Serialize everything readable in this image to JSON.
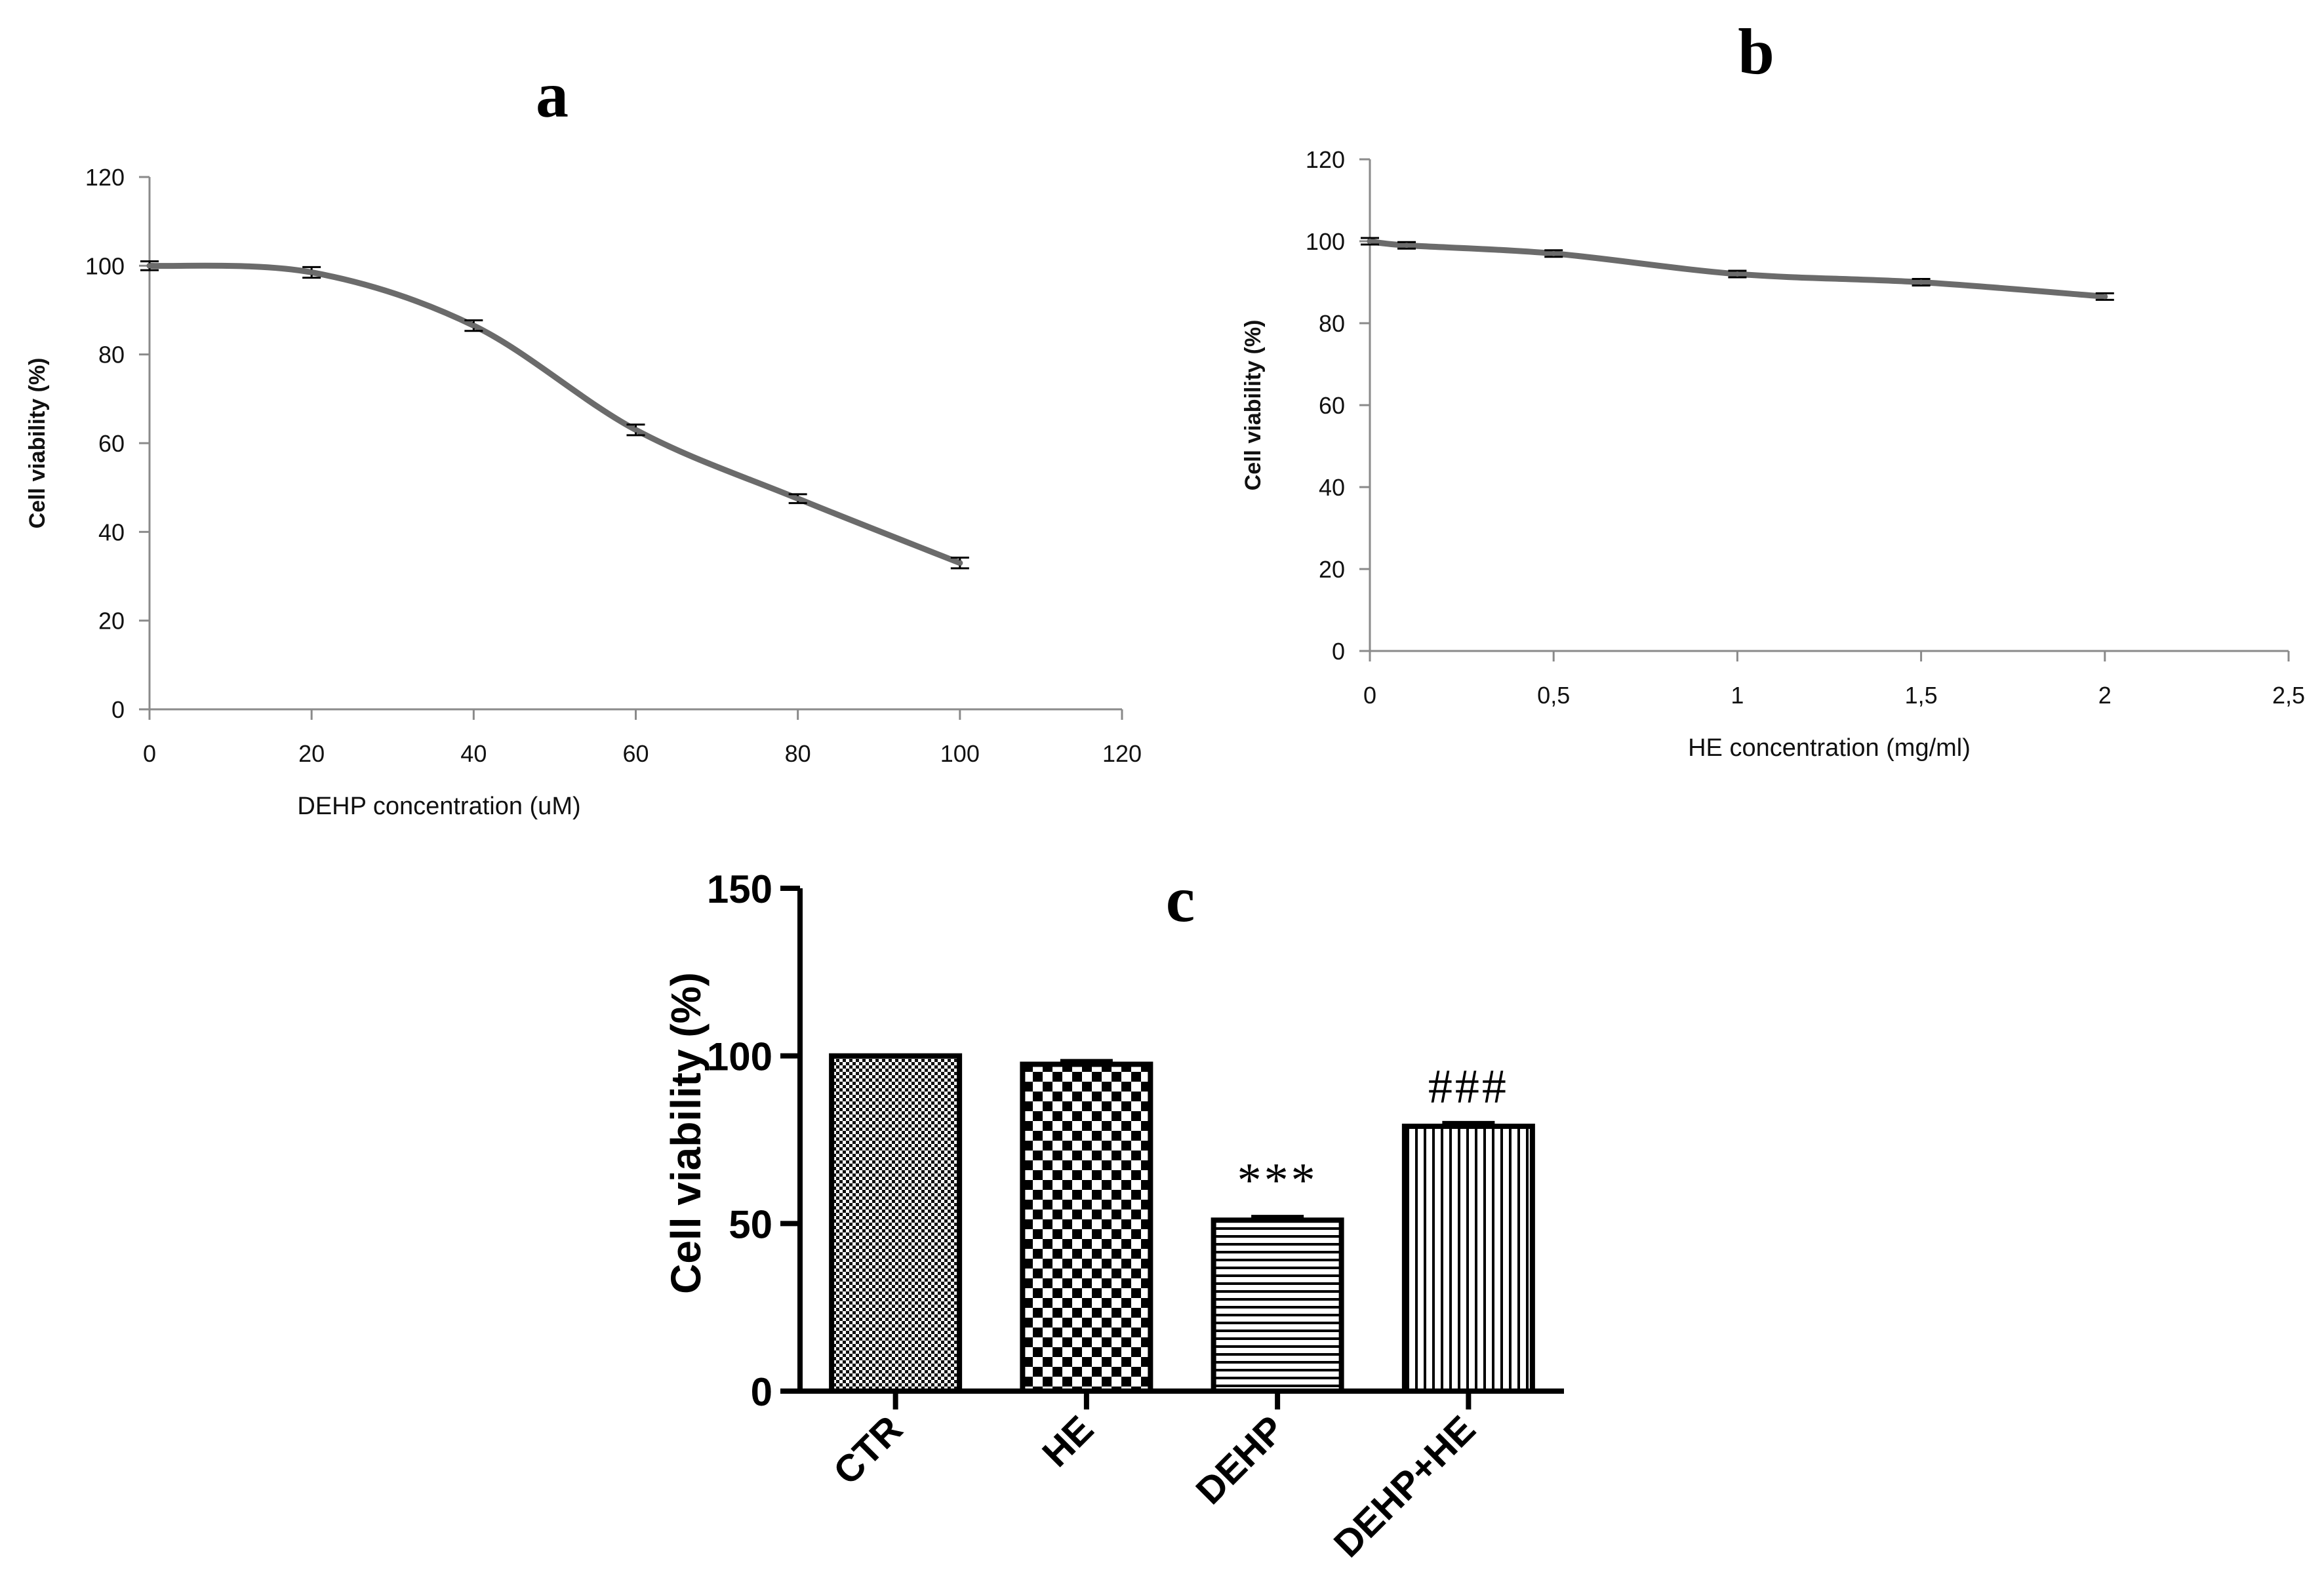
{
  "chart_data": [
    {
      "panel": "a",
      "type": "line",
      "title": "",
      "xlabel": "DEHP concentration (uM)",
      "ylabel": "Cell viability (%)",
      "xlim": [
        0,
        120
      ],
      "ylim": [
        0,
        120
      ],
      "xticks": [
        "0",
        "20",
        "40",
        "60",
        "80",
        "100",
        "120"
      ],
      "yticks": [
        "0",
        "20",
        "40",
        "60",
        "80",
        "100",
        "120"
      ],
      "x": [
        0,
        20,
        40,
        60,
        80,
        100
      ],
      "y": [
        100,
        98.5,
        86.5,
        63,
        47.5,
        33
      ],
      "err": [
        1,
        1.2,
        1.2,
        1.2,
        1,
        1.2
      ],
      "grid": false,
      "line_color": "#6b6b6b"
    },
    {
      "panel": "b",
      "type": "line",
      "title": "",
      "xlabel": "HE concentration (mg/ml)",
      "ylabel": "Cell viability (%)",
      "xlim": [
        0,
        2.5
      ],
      "ylim": [
        0,
        120
      ],
      "xticks": [
        "0",
        "0,5",
        "1",
        "1,5",
        "2",
        "2,5"
      ],
      "yticks": [
        "0",
        "20",
        "40",
        "60",
        "80",
        "100",
        "120"
      ],
      "x": [
        0,
        0.1,
        0.5,
        1,
        1.5,
        2
      ],
      "y": [
        100,
        99,
        97,
        92,
        90,
        86.5
      ],
      "err": [
        0.8,
        0.8,
        0.8,
        0.8,
        0.8,
        0.8
      ],
      "grid": false,
      "line_color": "#6b6b6b"
    },
    {
      "panel": "c",
      "type": "bar",
      "title": "",
      "xlabel": "",
      "ylabel": "Cell viability (%)",
      "ylim": [
        0,
        150
      ],
      "yticks": [
        "0",
        "50",
        "100",
        "150"
      ],
      "categories": [
        "CTR",
        "HE",
        "DEHP",
        "DEHP+HE"
      ],
      "values": [
        100,
        97.5,
        51,
        79
      ],
      "err": [
        0,
        1,
        1,
        1
      ],
      "annotations": [
        "",
        "",
        "***",
        "###"
      ],
      "patterns": [
        "fine-check",
        "checker",
        "horizontal",
        "vertical"
      ],
      "grid": false
    }
  ],
  "panel_labels": {
    "a": "a",
    "b": "b",
    "c": "c"
  }
}
